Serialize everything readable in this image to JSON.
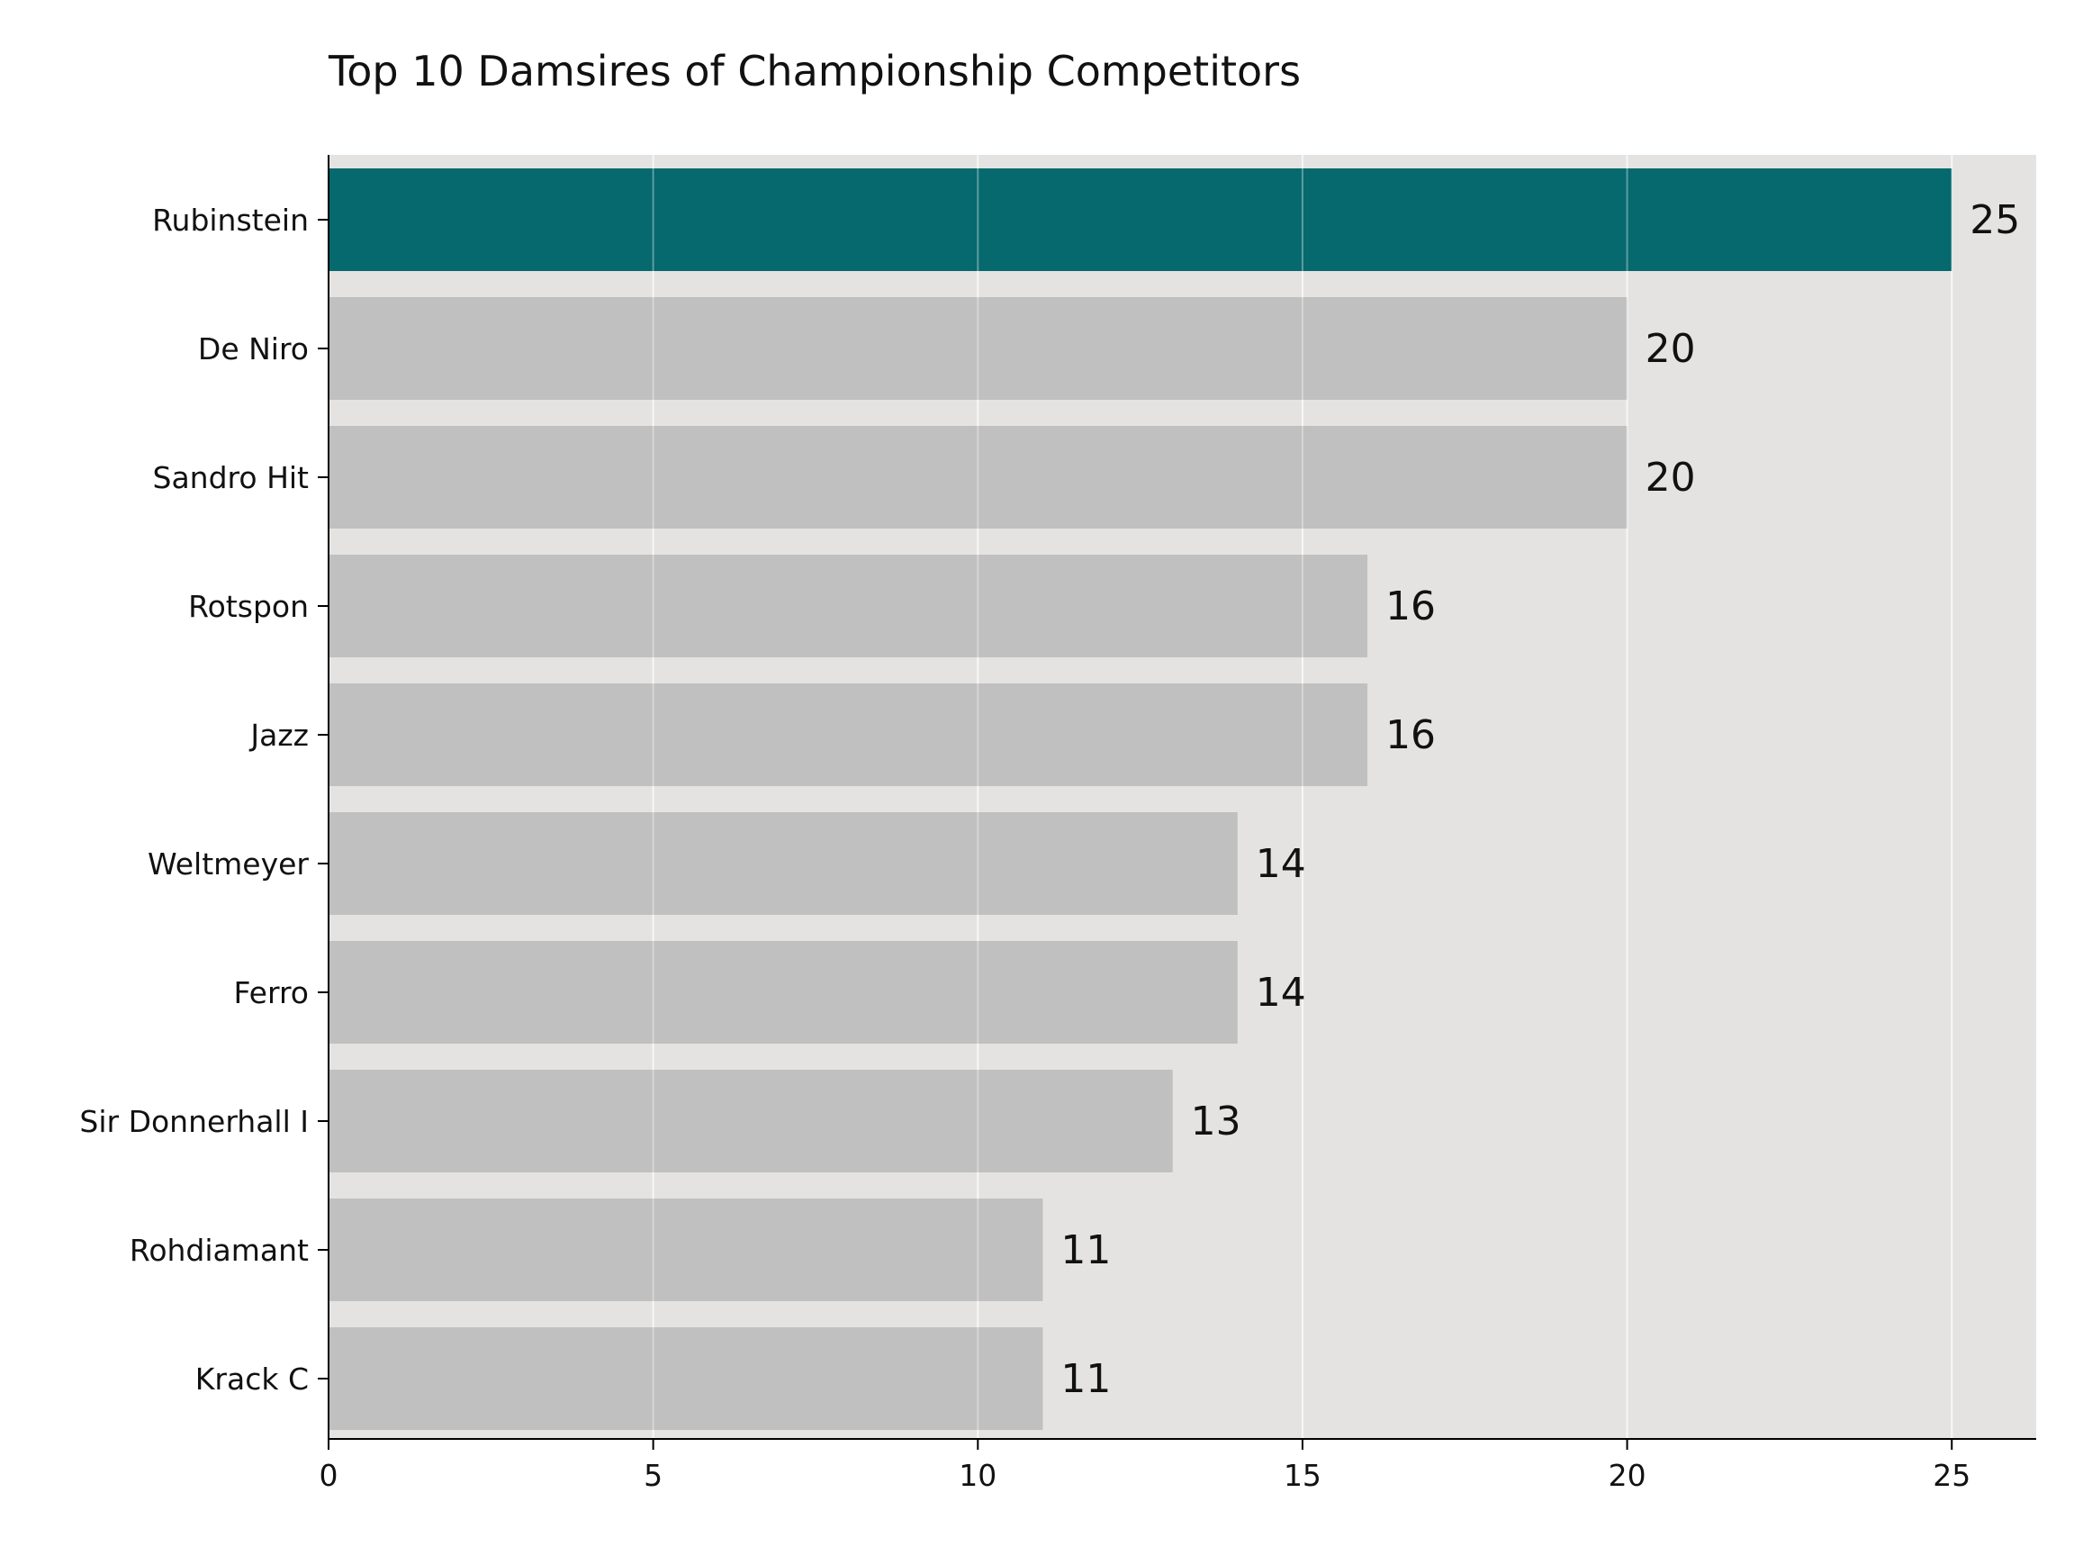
{
  "chart_data": {
    "type": "bar",
    "orientation": "horizontal",
    "title": "Top 10 Damsires of Championship Competitors",
    "xlabel": "",
    "ylabel": "",
    "categories": [
      "Rubinstein",
      "De Niro",
      "Sandro Hit",
      "Rotspon",
      "Jazz",
      "Weltmeyer",
      "Ferro",
      "Sir Donnerhall I",
      "Rohdiamant",
      "Krack C"
    ],
    "values": [
      25,
      20,
      20,
      16,
      16,
      14,
      14,
      13,
      11,
      11
    ],
    "value_labels": [
      "25",
      "20",
      "20",
      "16",
      "16",
      "14",
      "14",
      "13",
      "11",
      "11"
    ],
    "xlim": [
      0,
      26.3
    ],
    "xticks": [
      0,
      5,
      10,
      15,
      20,
      25
    ],
    "xtick_labels": [
      "0",
      "5",
      "10",
      "15",
      "20",
      "25"
    ],
    "highlight_index": 0,
    "grid": "vertical",
    "colors": {
      "highlight": "#05696e",
      "bar": "#c0c0c0",
      "plot_background": "#e4e3e2",
      "grid": "#f3f3f3",
      "axis": "#000000",
      "text": "#111111"
    }
  }
}
